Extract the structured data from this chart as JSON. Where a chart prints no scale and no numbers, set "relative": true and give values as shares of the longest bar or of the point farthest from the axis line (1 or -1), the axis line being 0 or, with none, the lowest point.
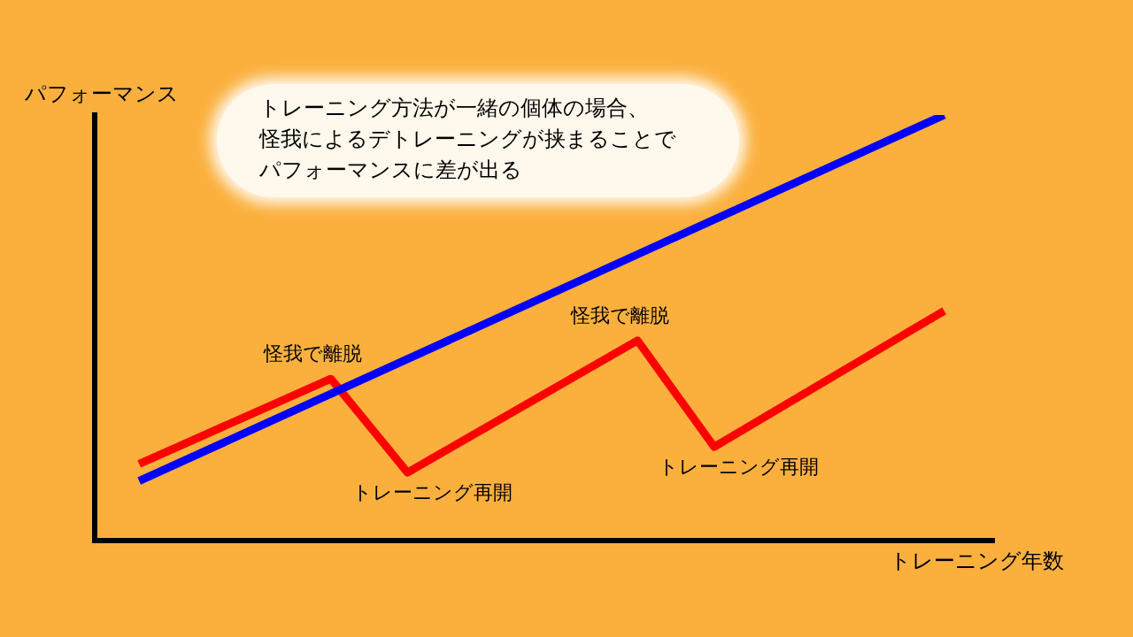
{
  "chart_data": {
    "type": "line",
    "relative": true,
    "xlabel": "トレーニング年数",
    "ylabel": "パフォーマンス",
    "grid": false,
    "legend": false,
    "marker": "none",
    "line_style": "solid",
    "categories": [
      null,
      null,
      null,
      null,
      null,
      null,
      null,
      null,
      null,
      null,
      null,
      null,
      null,
      null,
      null,
      null,
      null,
      null,
      null,
      null,
      null,
      null
    ],
    "series": [
      {
        "color": "#0000ff",
        "values": [
          0.14,
          null,
          null,
          null,
          null,
          null,
          null,
          null,
          null,
          null,
          null,
          null,
          null,
          null,
          null,
          null,
          null,
          null,
          null,
          null,
          null,
          1
        ]
      },
      {
        "color": "#ff0000",
        "values": [
          0.18,
          null,
          null,
          null,
          null,
          0.38,
          null,
          0.16,
          null,
          null,
          null,
          null,
          null,
          0.47,
          null,
          0.22,
          null,
          null,
          null,
          null,
          null,
          0.54
        ]
      }
    ],
    "annotations": [
      "トレーニング方法が一緒の個体の場合、",
      "怪我によるデトレーニングが挟まることで",
      "パフォーマンスに差が出る",
      "怪我で離脱",
      "トレーニング再開",
      "怪我で離脱",
      "トレーニング再開"
    ]
  }
}
